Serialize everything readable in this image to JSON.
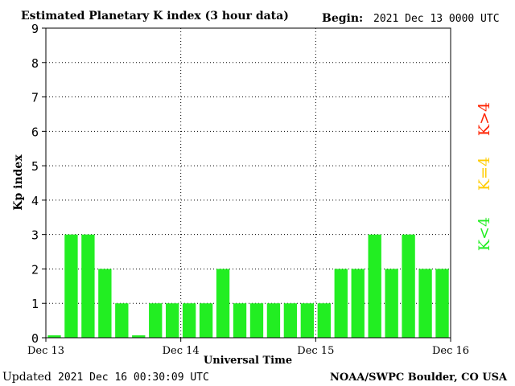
{
  "header": {
    "title": "Estimated Planetary K index (3 hour data)",
    "begin_label": "Begin:",
    "begin_value": "2021 Dec 13 0000 UTC"
  },
  "footer": {
    "updated_label": "Updated",
    "updated_value": "2021 Dec 16 00:30:09 UTC",
    "source": "NOAA/SWPC Boulder, CO USA"
  },
  "legend": {
    "high": {
      "label": "K>4",
      "color": "#ff2200"
    },
    "mid": {
      "label": "K=4",
      "color": "#ffcc00"
    },
    "low": {
      "label": "K<4",
      "color": "#22ee22"
    }
  },
  "chart_data": {
    "type": "bar",
    "xlabel": "Universal Time",
    "ylabel": "Kp index",
    "ylim": [
      0,
      9
    ],
    "yticks": [
      0,
      1,
      2,
      3,
      4,
      5,
      6,
      7,
      8,
      9
    ],
    "xticks": [
      "Dec 13",
      "Dec 14",
      "Dec 15",
      "Dec 16"
    ],
    "grid": true,
    "bar_color": "#22ee22",
    "values": [
      0,
      3,
      3,
      2,
      1,
      0,
      1,
      1,
      1,
      1,
      2,
      1,
      1,
      1,
      1,
      1,
      1,
      2,
      2,
      3,
      2,
      3,
      2,
      2
    ]
  }
}
